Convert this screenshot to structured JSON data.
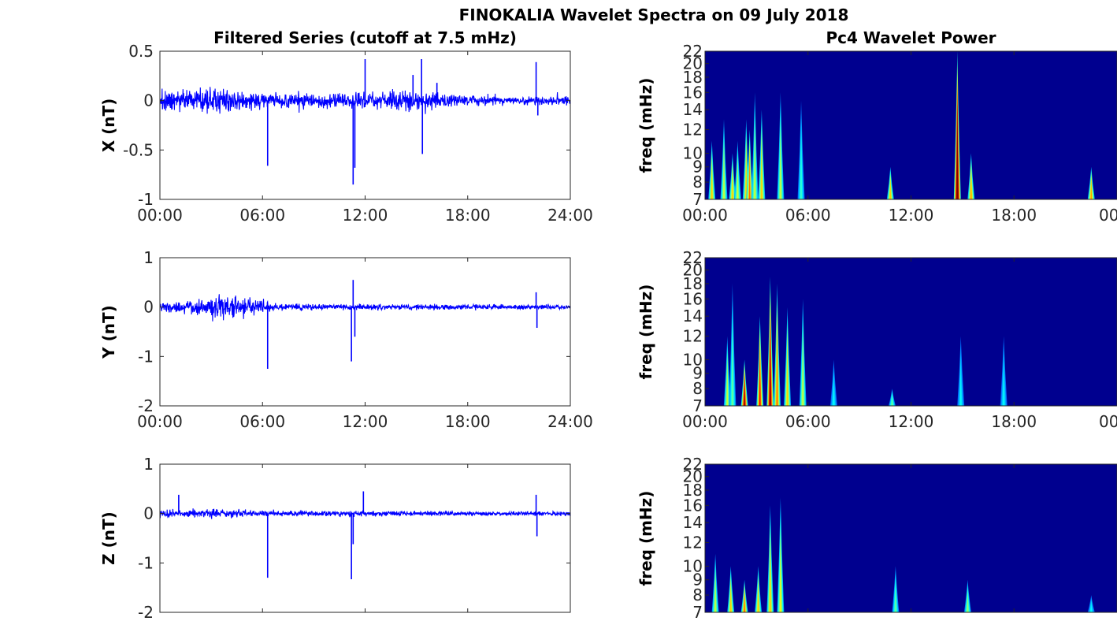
{
  "figure_title": "FINOKALIA Wavelet Spectra on 09 July 2018",
  "colors": {
    "series": "#0000ff",
    "wavelet_bg": "#00008f",
    "axis": "#262626"
  },
  "chart_data": [
    {
      "type": "line",
      "title": "Filtered Series (cutoff at 7.5 mHz)",
      "ylabel": "X (nT)",
      "xlim": [
        0,
        24
      ],
      "ylim": [
        -1,
        0.5
      ],
      "x_ticks": [
        "00:00",
        "06:00",
        "12:00",
        "18:00",
        "24:00"
      ],
      "y_ticks": [
        "0.5",
        "0",
        "-0.5",
        "-1"
      ],
      "y_tick_values": [
        0.5,
        0,
        -0.5,
        -1
      ],
      "noise_envelope": [
        [
          0,
          0.15
        ],
        [
          3,
          0.18
        ],
        [
          6,
          0.12
        ],
        [
          9,
          0.1
        ],
        [
          12,
          0.12
        ],
        [
          15,
          0.14
        ],
        [
          18,
          0.07
        ],
        [
          21,
          0.06
        ],
        [
          24,
          0.06
        ]
      ],
      "spikes": [
        [
          6.3,
          -0.66
        ],
        [
          11.3,
          -0.85
        ],
        [
          11.4,
          -0.68
        ],
        [
          12.0,
          0.42
        ],
        [
          14.8,
          0.26
        ],
        [
          15.3,
          0.42
        ],
        [
          15.35,
          -0.54
        ],
        [
          16.2,
          0.18
        ],
        [
          22.0,
          0.39
        ],
        [
          22.1,
          -0.15
        ]
      ]
    },
    {
      "type": "line",
      "title": "",
      "ylabel": "Y (nT)",
      "xlim": [
        0,
        24
      ],
      "ylim": [
        -2,
        1
      ],
      "x_ticks": [
        "00:00",
        "06:00",
        "12:00",
        "18:00",
        "24:00"
      ],
      "y_ticks": [
        "1",
        "0",
        "-1",
        "-2"
      ],
      "y_tick_values": [
        1,
        0,
        -1,
        -2
      ],
      "noise_envelope": [
        [
          0,
          0.15
        ],
        [
          2,
          0.2
        ],
        [
          4,
          0.35
        ],
        [
          5,
          0.3
        ],
        [
          6.5,
          0.12
        ],
        [
          9,
          0.08
        ],
        [
          12,
          0.08
        ],
        [
          18,
          0.07
        ],
        [
          24,
          0.07
        ]
      ],
      "spikes": [
        [
          6.3,
          -1.25
        ],
        [
          11.2,
          -1.1
        ],
        [
          11.3,
          0.55
        ],
        [
          11.4,
          -0.6
        ],
        [
          22.0,
          0.3
        ],
        [
          22.05,
          -0.42
        ]
      ]
    },
    {
      "type": "line",
      "title": "",
      "ylabel": "Z (nT)",
      "xlim": [
        0,
        24
      ],
      "ylim": [
        -2,
        1
      ],
      "x_ticks": [
        "",
        "",
        "",
        "",
        ""
      ],
      "y_ticks": [
        "1",
        "0",
        "-1",
        "-2"
      ],
      "y_tick_values": [
        1,
        0,
        -1,
        -2
      ],
      "noise_envelope": [
        [
          0,
          0.1
        ],
        [
          3,
          0.12
        ],
        [
          6,
          0.08
        ],
        [
          12,
          0.08
        ],
        [
          18,
          0.06
        ],
        [
          24,
          0.06
        ]
      ],
      "spikes": [
        [
          1.1,
          0.38
        ],
        [
          6.3,
          -1.3
        ],
        [
          11.2,
          -1.33
        ],
        [
          11.3,
          -0.62
        ],
        [
          11.9,
          0.45
        ],
        [
          22.0,
          0.38
        ],
        [
          22.05,
          -0.46
        ]
      ]
    },
    {
      "type": "heatmap",
      "title": "Pc4 Wavelet Power",
      "ylabel": "freq (mHz)",
      "xlim": [
        0,
        24
      ],
      "ylim": [
        7,
        22
      ],
      "y_scale": "log",
      "x_ticks": [
        "00:00",
        "06:00",
        "12:00",
        "18:00",
        "00"
      ],
      "y_ticks": [
        "22",
        "20",
        "18",
        "16",
        "14",
        "12",
        "10",
        "9",
        "8",
        "7"
      ],
      "y_tick_values": [
        22,
        20,
        18,
        16,
        14,
        12,
        10,
        9,
        8,
        7
      ],
      "streaks": [
        [
          0.4,
          11,
          0.5
        ],
        [
          1.1,
          13,
          0.4
        ],
        [
          1.6,
          10,
          0.5
        ],
        [
          1.9,
          11,
          0.4
        ],
        [
          2.4,
          13,
          0.5
        ],
        [
          2.6,
          12,
          0.6
        ],
        [
          2.9,
          16,
          0.4
        ],
        [
          3.3,
          14,
          0.5
        ],
        [
          4.4,
          16,
          0.4
        ],
        [
          5.6,
          15,
          0.25
        ],
        [
          10.8,
          9,
          0.5
        ],
        [
          14.7,
          22,
          0.95
        ],
        [
          15.5,
          10,
          0.55
        ],
        [
          22.5,
          9,
          0.55
        ]
      ]
    },
    {
      "type": "heatmap",
      "title": "",
      "ylabel": "freq (mHz)",
      "xlim": [
        0,
        24
      ],
      "ylim": [
        7,
        22
      ],
      "y_scale": "log",
      "x_ticks": [
        "00:00",
        "06:00",
        "12:00",
        "18:00",
        "00"
      ],
      "y_ticks": [
        "22",
        "20",
        "18",
        "16",
        "14",
        "12",
        "10",
        "9",
        "8",
        "7"
      ],
      "y_tick_values": [
        22,
        20,
        18,
        16,
        14,
        12,
        10,
        9,
        8,
        7
      ],
      "streaks": [
        [
          1.3,
          12,
          0.4
        ],
        [
          1.6,
          18,
          0.3
        ],
        [
          2.3,
          10,
          0.8
        ],
        [
          3.2,
          14,
          0.7
        ],
        [
          3.8,
          19,
          0.85
        ],
        [
          4.2,
          18,
          0.6
        ],
        [
          4.8,
          15,
          0.5
        ],
        [
          5.7,
          16,
          0.4
        ],
        [
          7.5,
          10,
          0.2
        ],
        [
          10.9,
          8,
          0.3
        ],
        [
          14.9,
          12,
          0.2
        ],
        [
          17.4,
          12,
          0.2
        ]
      ]
    },
    {
      "type": "heatmap",
      "title": "",
      "ylabel": "freq (mHz)",
      "xlim": [
        0,
        24
      ],
      "ylim": [
        7,
        22
      ],
      "y_scale": "log",
      "x_ticks": [
        "",
        "",
        "",
        "",
        ""
      ],
      "y_ticks": [
        "22",
        "20",
        "18",
        "16",
        "14",
        "12",
        "10",
        "9",
        "8",
        "7"
      ],
      "y_tick_values": [
        22,
        20,
        18,
        16,
        14,
        12,
        10,
        9,
        8,
        7
      ],
      "streaks": [
        [
          0.6,
          11,
          0.4
        ],
        [
          1.5,
          10,
          0.5
        ],
        [
          2.3,
          9,
          0.6
        ],
        [
          3.1,
          10,
          0.5
        ],
        [
          3.8,
          16,
          0.5
        ],
        [
          4.4,
          17,
          0.45
        ],
        [
          11.1,
          10,
          0.3
        ],
        [
          15.3,
          9,
          0.35
        ],
        [
          22.5,
          8,
          0.2
        ]
      ]
    }
  ]
}
